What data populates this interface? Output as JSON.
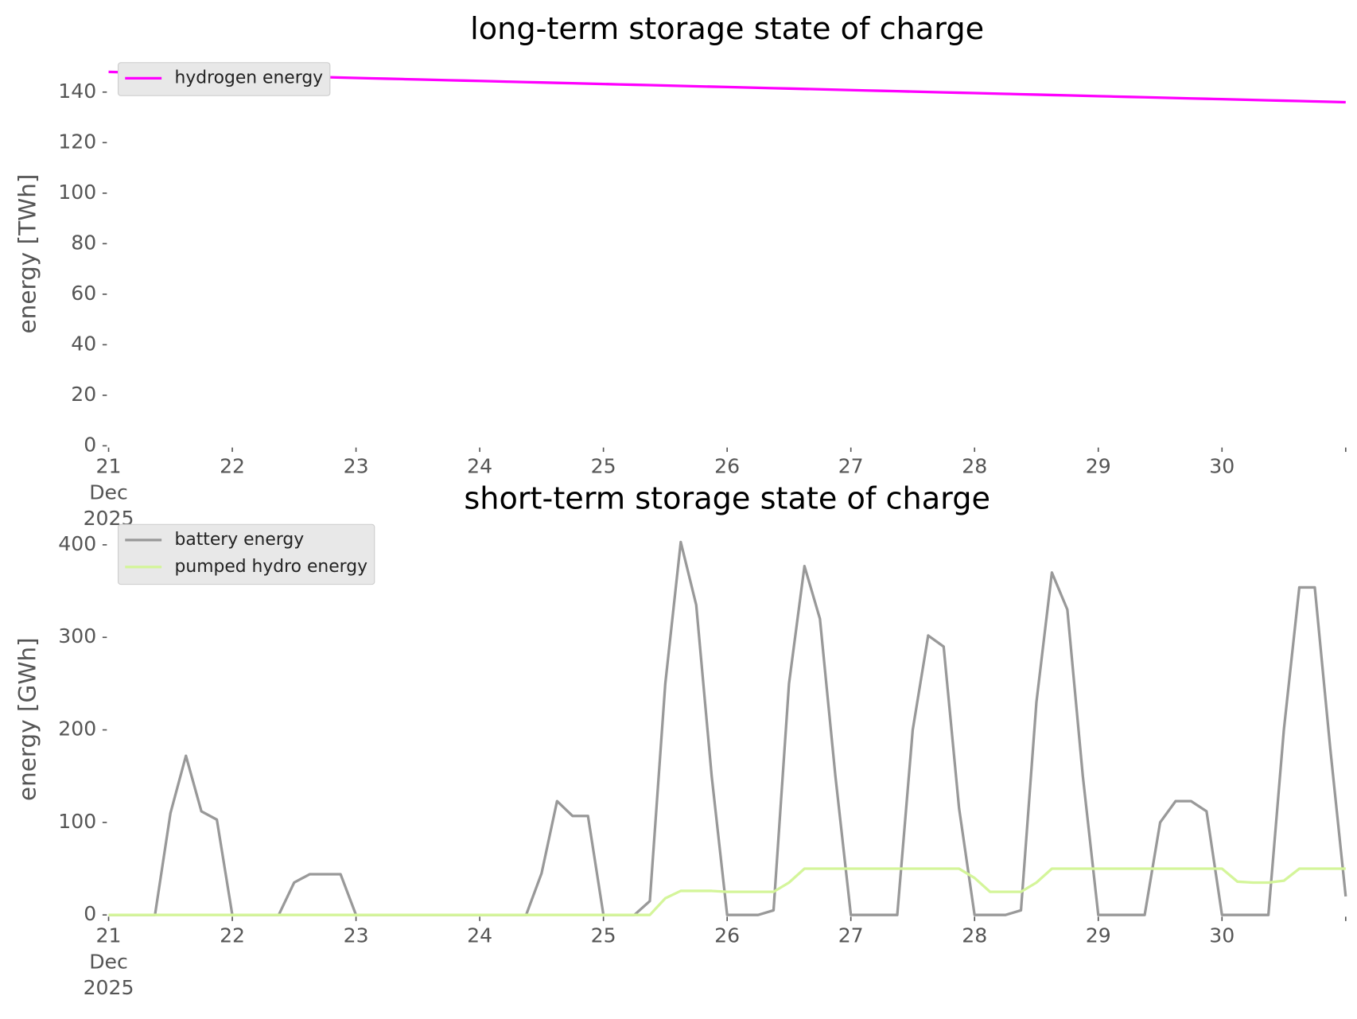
{
  "chart_data": [
    {
      "type": "line",
      "title": "long-term storage state of charge",
      "ylabel": "energy [TWh]",
      "x": [
        21,
        21.125,
        21.25,
        21.375,
        21.5,
        21.625,
        21.75,
        21.875,
        22,
        22.125,
        22.25,
        22.375,
        22.5,
        22.625,
        22.75,
        22.875,
        23,
        23.125,
        23.25,
        23.375,
        23.5,
        23.625,
        23.75,
        23.875,
        24,
        24.125,
        24.25,
        24.375,
        24.5,
        24.625,
        24.75,
        24.875,
        25,
        25.125,
        25.25,
        25.375,
        25.5,
        25.625,
        25.75,
        25.875,
        26,
        26.125,
        26.25,
        26.375,
        26.5,
        26.625,
        26.75,
        26.875,
        27,
        27.125,
        27.25,
        27.375,
        27.5,
        27.625,
        27.75,
        27.875,
        28,
        28.125,
        28.25,
        28.375,
        28.5,
        28.625,
        28.75,
        28.875,
        29,
        29.125,
        29.25,
        29.375,
        29.5,
        29.625,
        29.75,
        29.875,
        30,
        30.125,
        30.25,
        30.375,
        30.5,
        30.625,
        30.75,
        30.875,
        31
      ],
      "series": [
        {
          "name": "hydrogen energy",
          "color": "#ff00ff",
          "values": [
            148.0,
            147.85,
            147.7,
            147.55,
            147.4,
            147.25,
            147.1,
            146.95,
            146.8,
            146.65,
            146.5,
            146.35,
            146.2,
            146.05,
            145.9,
            145.75,
            145.6,
            145.45,
            145.3,
            145.15,
            145.0,
            144.85,
            144.7,
            144.55,
            144.4,
            144.25,
            144.1,
            143.95,
            143.8,
            143.65,
            143.5,
            143.35,
            143.2,
            143.05,
            142.9,
            142.75,
            142.6,
            142.45,
            142.3,
            142.15,
            142.0,
            141.85,
            141.7,
            141.55,
            141.4,
            141.25,
            141.1,
            140.95,
            140.8,
            140.65,
            140.5,
            140.35,
            140.2,
            140.05,
            139.9,
            139.75,
            139.6,
            139.45,
            139.3,
            139.15,
            139.0,
            138.85,
            138.7,
            138.55,
            138.4,
            138.25,
            138.1,
            137.95,
            137.8,
            137.65,
            137.5,
            137.35,
            137.2,
            137.05,
            136.9,
            136.75,
            136.6,
            136.45,
            136.3,
            136.15,
            136.0
          ]
        }
      ],
      "xlim": [
        21,
        31
      ],
      "xticks": [
        {
          "value": 21,
          "label": "21\nDec\n2025"
        },
        22,
        23,
        24,
        25,
        26,
        27,
        28,
        29,
        30,
        {
          "value": 31,
          "label": null
        }
      ],
      "ylim": [
        0,
        152
      ],
      "yticks": [
        0,
        20,
        40,
        60,
        80,
        100,
        120,
        140
      ],
      "legend": "upper left",
      "grid": false
    },
    {
      "type": "line",
      "title": "short-term storage state of charge",
      "ylabel": "energy [GWh]",
      "x": [
        21,
        21.125,
        21.25,
        21.375,
        21.5,
        21.625,
        21.75,
        21.875,
        22,
        22.125,
        22.25,
        22.375,
        22.5,
        22.625,
        22.75,
        22.875,
        23,
        23.125,
        23.25,
        23.375,
        23.5,
        23.625,
        23.75,
        23.875,
        24,
        24.125,
        24.25,
        24.375,
        24.5,
        24.625,
        24.75,
        24.875,
        25,
        25.125,
        25.25,
        25.375,
        25.5,
        25.625,
        25.75,
        25.875,
        26,
        26.125,
        26.25,
        26.375,
        26.5,
        26.625,
        26.75,
        26.875,
        27,
        27.125,
        27.25,
        27.375,
        27.5,
        27.625,
        27.75,
        27.875,
        28,
        28.125,
        28.25,
        28.375,
        28.5,
        28.625,
        28.75,
        28.875,
        29,
        29.125,
        29.25,
        29.375,
        29.5,
        29.625,
        29.75,
        29.875,
        30,
        30.125,
        30.25,
        30.375,
        30.5,
        30.625,
        30.75,
        30.875,
        31
      ],
      "series": [
        {
          "name": "battery energy",
          "color": "#999999",
          "values": [
            0,
            0,
            0,
            0,
            110,
            172,
            112,
            103,
            0,
            0,
            0,
            0,
            35,
            44,
            44,
            44,
            0,
            0,
            0,
            0,
            0,
            0,
            0,
            0,
            0,
            0,
            0,
            0,
            45,
            123,
            107,
            107,
            0,
            0,
            0,
            15,
            250,
            403,
            335,
            150,
            0,
            0,
            0,
            5,
            250,
            377,
            320,
            150,
            0,
            0,
            0,
            0,
            200,
            302,
            290,
            115,
            0,
            0,
            0,
            5,
            230,
            370,
            330,
            150,
            0,
            0,
            0,
            0,
            100,
            123,
            123,
            112,
            0,
            0,
            0,
            0,
            200,
            354,
            354,
            180,
            20
          ]
        },
        {
          "name": "pumped hydro energy",
          "color": "#d4f59a",
          "values": [
            0,
            0,
            0,
            0,
            0,
            0,
            0,
            0,
            0,
            0,
            0,
            0,
            0,
            0,
            0,
            0,
            0,
            0,
            0,
            0,
            0,
            0,
            0,
            0,
            0,
            0,
            0,
            0,
            0,
            0,
            0,
            0,
            0,
            0,
            0,
            0,
            18,
            26,
            26,
            26,
            25,
            25,
            25,
            25,
            35,
            50,
            50,
            50,
            50,
            50,
            50,
            50,
            50,
            50,
            50,
            50,
            40,
            25,
            25,
            25,
            35,
            50,
            50,
            50,
            50,
            50,
            50,
            50,
            50,
            50,
            50,
            50,
            50,
            36,
            35,
            35,
            37,
            50,
            50,
            50,
            50
          ]
        }
      ],
      "xlim": [
        21,
        31
      ],
      "xticks": [
        {
          "value": 21,
          "label": "21\nDec\n2025"
        },
        22,
        23,
        24,
        25,
        26,
        27,
        28,
        29,
        30,
        {
          "value": 31,
          "label": null
        }
      ],
      "ylim": [
        0,
        423
      ],
      "yticks": [
        0,
        100,
        200,
        300,
        400
      ],
      "legend": "upper left",
      "grid": false
    }
  ]
}
